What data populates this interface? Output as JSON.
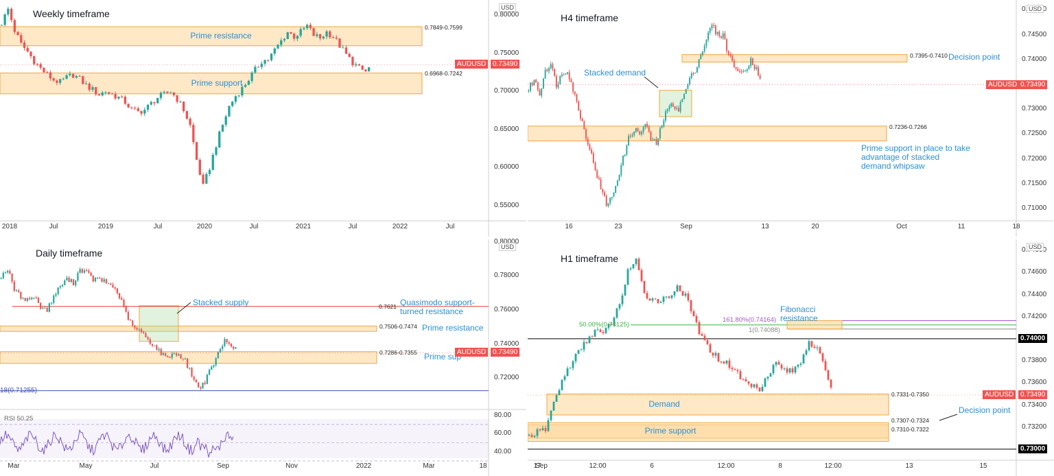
{
  "chart_data": [
    {
      "type": "candlestick",
      "title": "Weekly timeframe",
      "currency": "USD",
      "symbol": "AUDUSD",
      "last_price": "0.73490",
      "ylim": [
        0.53,
        0.82
      ],
      "yticks": [
        "0.80000",
        "0.75000",
        "0.70000",
        "0.65000",
        "0.60000",
        "0.55000"
      ],
      "xticks": [
        "2018",
        "Jul",
        "2019",
        "Jul",
        "2020",
        "Jul",
        "2021",
        "Jul",
        "2022",
        "Jul"
      ],
      "zones": [
        {
          "label": "Prime resistance",
          "range": "0.7849-0.7599",
          "low": 0.7599,
          "high": 0.7849
        },
        {
          "label": "Prime support",
          "range": "0.6968-0.7242",
          "low": 0.6968,
          "high": 0.7242
        }
      ],
      "path": [
        0.79,
        0.808,
        0.78,
        0.762,
        0.752,
        0.74,
        0.73,
        0.722,
        0.715,
        0.712,
        0.718,
        0.722,
        0.716,
        0.708,
        0.702,
        0.696,
        0.7,
        0.696,
        0.692,
        0.686,
        0.676,
        0.673,
        0.676,
        0.684,
        0.692,
        0.696,
        0.7,
        0.69,
        0.676,
        0.655,
        0.61,
        0.575,
        0.6,
        0.63,
        0.656,
        0.68,
        0.694,
        0.704,
        0.716,
        0.728,
        0.74,
        0.742,
        0.754,
        0.766,
        0.778,
        0.772,
        0.778,
        0.786,
        0.774,
        0.77,
        0.778,
        0.772,
        0.76,
        0.748,
        0.738,
        0.73,
        0.726,
        0.735
      ]
    },
    {
      "type": "candlestick",
      "title": "H4 timeframe",
      "currency": "USD",
      "symbol": "AUDUSD",
      "last_price": "0.73490",
      "ylim": [
        0.7075,
        0.752
      ],
      "yticks": [
        "0.75000",
        "0.74500",
        "0.74000",
        "0.73500",
        "0.73000",
        "0.72500",
        "0.72000",
        "0.71500",
        "0.71000"
      ],
      "xticks": [
        "16",
        "23",
        "Sep",
        "13",
        "20",
        "Oct",
        "11",
        "18"
      ],
      "zones": [
        {
          "label": "",
          "range": "0.7395-0.7410",
          "low": 0.7395,
          "high": 0.741,
          "tag": "Decision point"
        },
        {
          "label": "",
          "range": "0.7236-0.7266",
          "low": 0.7236,
          "high": 0.7266,
          "tag": "Prime support in place to take advantage of stacked demand whipsaw"
        }
      ],
      "demand_box": {
        "label": "Stacked demand",
        "low": 0.7285,
        "high": 0.7338
      },
      "path": [
        0.734,
        0.736,
        0.733,
        0.738,
        0.739,
        0.735,
        0.737,
        0.738,
        0.734,
        0.73,
        0.726,
        0.722,
        0.718,
        0.714,
        0.711,
        0.712,
        0.716,
        0.72,
        0.724,
        0.726,
        0.725,
        0.727,
        0.724,
        0.723,
        0.727,
        0.73,
        0.731,
        0.73,
        0.733,
        0.736,
        0.738,
        0.741,
        0.744,
        0.747,
        0.745,
        0.745,
        0.741,
        0.739,
        0.737,
        0.738,
        0.74,
        0.738,
        0.736
      ]
    },
    {
      "type": "candlestick",
      "title": "Daily timeframe",
      "currency": "USD",
      "symbol": "AUDUSD",
      "last_price": "0.73490",
      "ylim": [
        0.7015,
        0.8015
      ],
      "yticks": [
        "0.80000",
        "0.78000",
        "0.76000",
        "0.74000",
        "0.72000"
      ],
      "xticks": [
        "Mar",
        "May",
        "Jul",
        "Sep",
        "Nov",
        "2022",
        "Mar",
        "18"
      ],
      "levels": [
        {
          "value": 0.7621,
          "range": "0.7621",
          "label": "Quasimodo support-turned resistance",
          "color": "#e53935"
        },
        {
          "value": 0.71255,
          "range": "18(0.71255)",
          "label": "",
          "color": "#3f51b5"
        }
      ],
      "zones": [
        {
          "label": "Prime resistance",
          "range": "0.7506-0.7474",
          "low": 0.7474,
          "high": 0.7506
        },
        {
          "label": "Prime sup",
          "range": "0.7286-0.7355",
          "low": 0.7286,
          "high": 0.7355
        }
      ],
      "supply_box": {
        "label": "Stacked supply",
        "low": 0.7415,
        "high": 0.7625
      },
      "path": [
        0.78,
        0.784,
        0.772,
        0.768,
        0.766,
        0.768,
        0.762,
        0.76,
        0.768,
        0.774,
        0.778,
        0.776,
        0.784,
        0.782,
        0.778,
        0.778,
        0.776,
        0.774,
        0.768,
        0.758,
        0.75,
        0.748,
        0.744,
        0.74,
        0.736,
        0.732,
        0.734,
        0.734,
        0.73,
        0.722,
        0.714,
        0.718,
        0.726,
        0.734,
        0.742,
        0.74,
        0.735
      ],
      "rsi": {
        "label": "RSI",
        "value": "50.25",
        "yticks": [
          "80.00",
          "60.00",
          "40.00"
        ]
      }
    },
    {
      "type": "candlestick",
      "title": "H1 timeframe",
      "currency": "USD",
      "symbol": "AUDUSD",
      "last_price": "0.73490",
      "ylim": [
        0.729,
        0.749
      ],
      "yticks": [
        "0.74800",
        "0.74600",
        "0.74400",
        "0.74200",
        "0.73800",
        "0.73600",
        "0.73400",
        "0.73200"
      ],
      "xticks": [
        "Sep",
        "12:00",
        "6",
        "12:00",
        "8",
        "12:00",
        "13",
        "15",
        "17"
      ],
      "levels": [
        {
          "value": 0.74,
          "range": "0.74000",
          "color": "#000000"
        },
        {
          "value": 0.73,
          "range": "0.73000",
          "color": "#000000"
        },
        {
          "value": 0.74164,
          "range": "161.80%(0.74164)",
          "color": "#a855d4"
        },
        {
          "value": 0.74125,
          "range": "50.00%(0.74125)",
          "color": "#3cb043"
        },
        {
          "value": 0.74088,
          "range": "1(0.74088)",
          "color": "#888888"
        }
      ],
      "fib_label": "Fibonacci resistance",
      "zones": [
        {
          "label": "Demand",
          "range": "0.7331-0.7350",
          "low": 0.7331,
          "high": 0.735
        },
        {
          "label": "Prime support",
          "range": "0.7310-0.7322",
          "low": 0.731,
          "high": 0.7322
        },
        {
          "label": "",
          "range": "0.7307-0.7324",
          "low": 0.7307,
          "high": 0.7324,
          "tag": "Decision point"
        }
      ],
      "path": [
        0.7312,
        0.7315,
        0.7318,
        0.7342,
        0.7362,
        0.7376,
        0.7388,
        0.7398,
        0.7408,
        0.7404,
        0.7415,
        0.743,
        0.7462,
        0.747,
        0.744,
        0.7436,
        0.7435,
        0.7438,
        0.7448,
        0.7438,
        0.742,
        0.74,
        0.739,
        0.7382,
        0.7378,
        0.7372,
        0.7362,
        0.7358,
        0.7355,
        0.7368,
        0.7378,
        0.7372,
        0.737,
        0.738,
        0.7398,
        0.739,
        0.7372,
        0.735
      ]
    }
  ]
}
